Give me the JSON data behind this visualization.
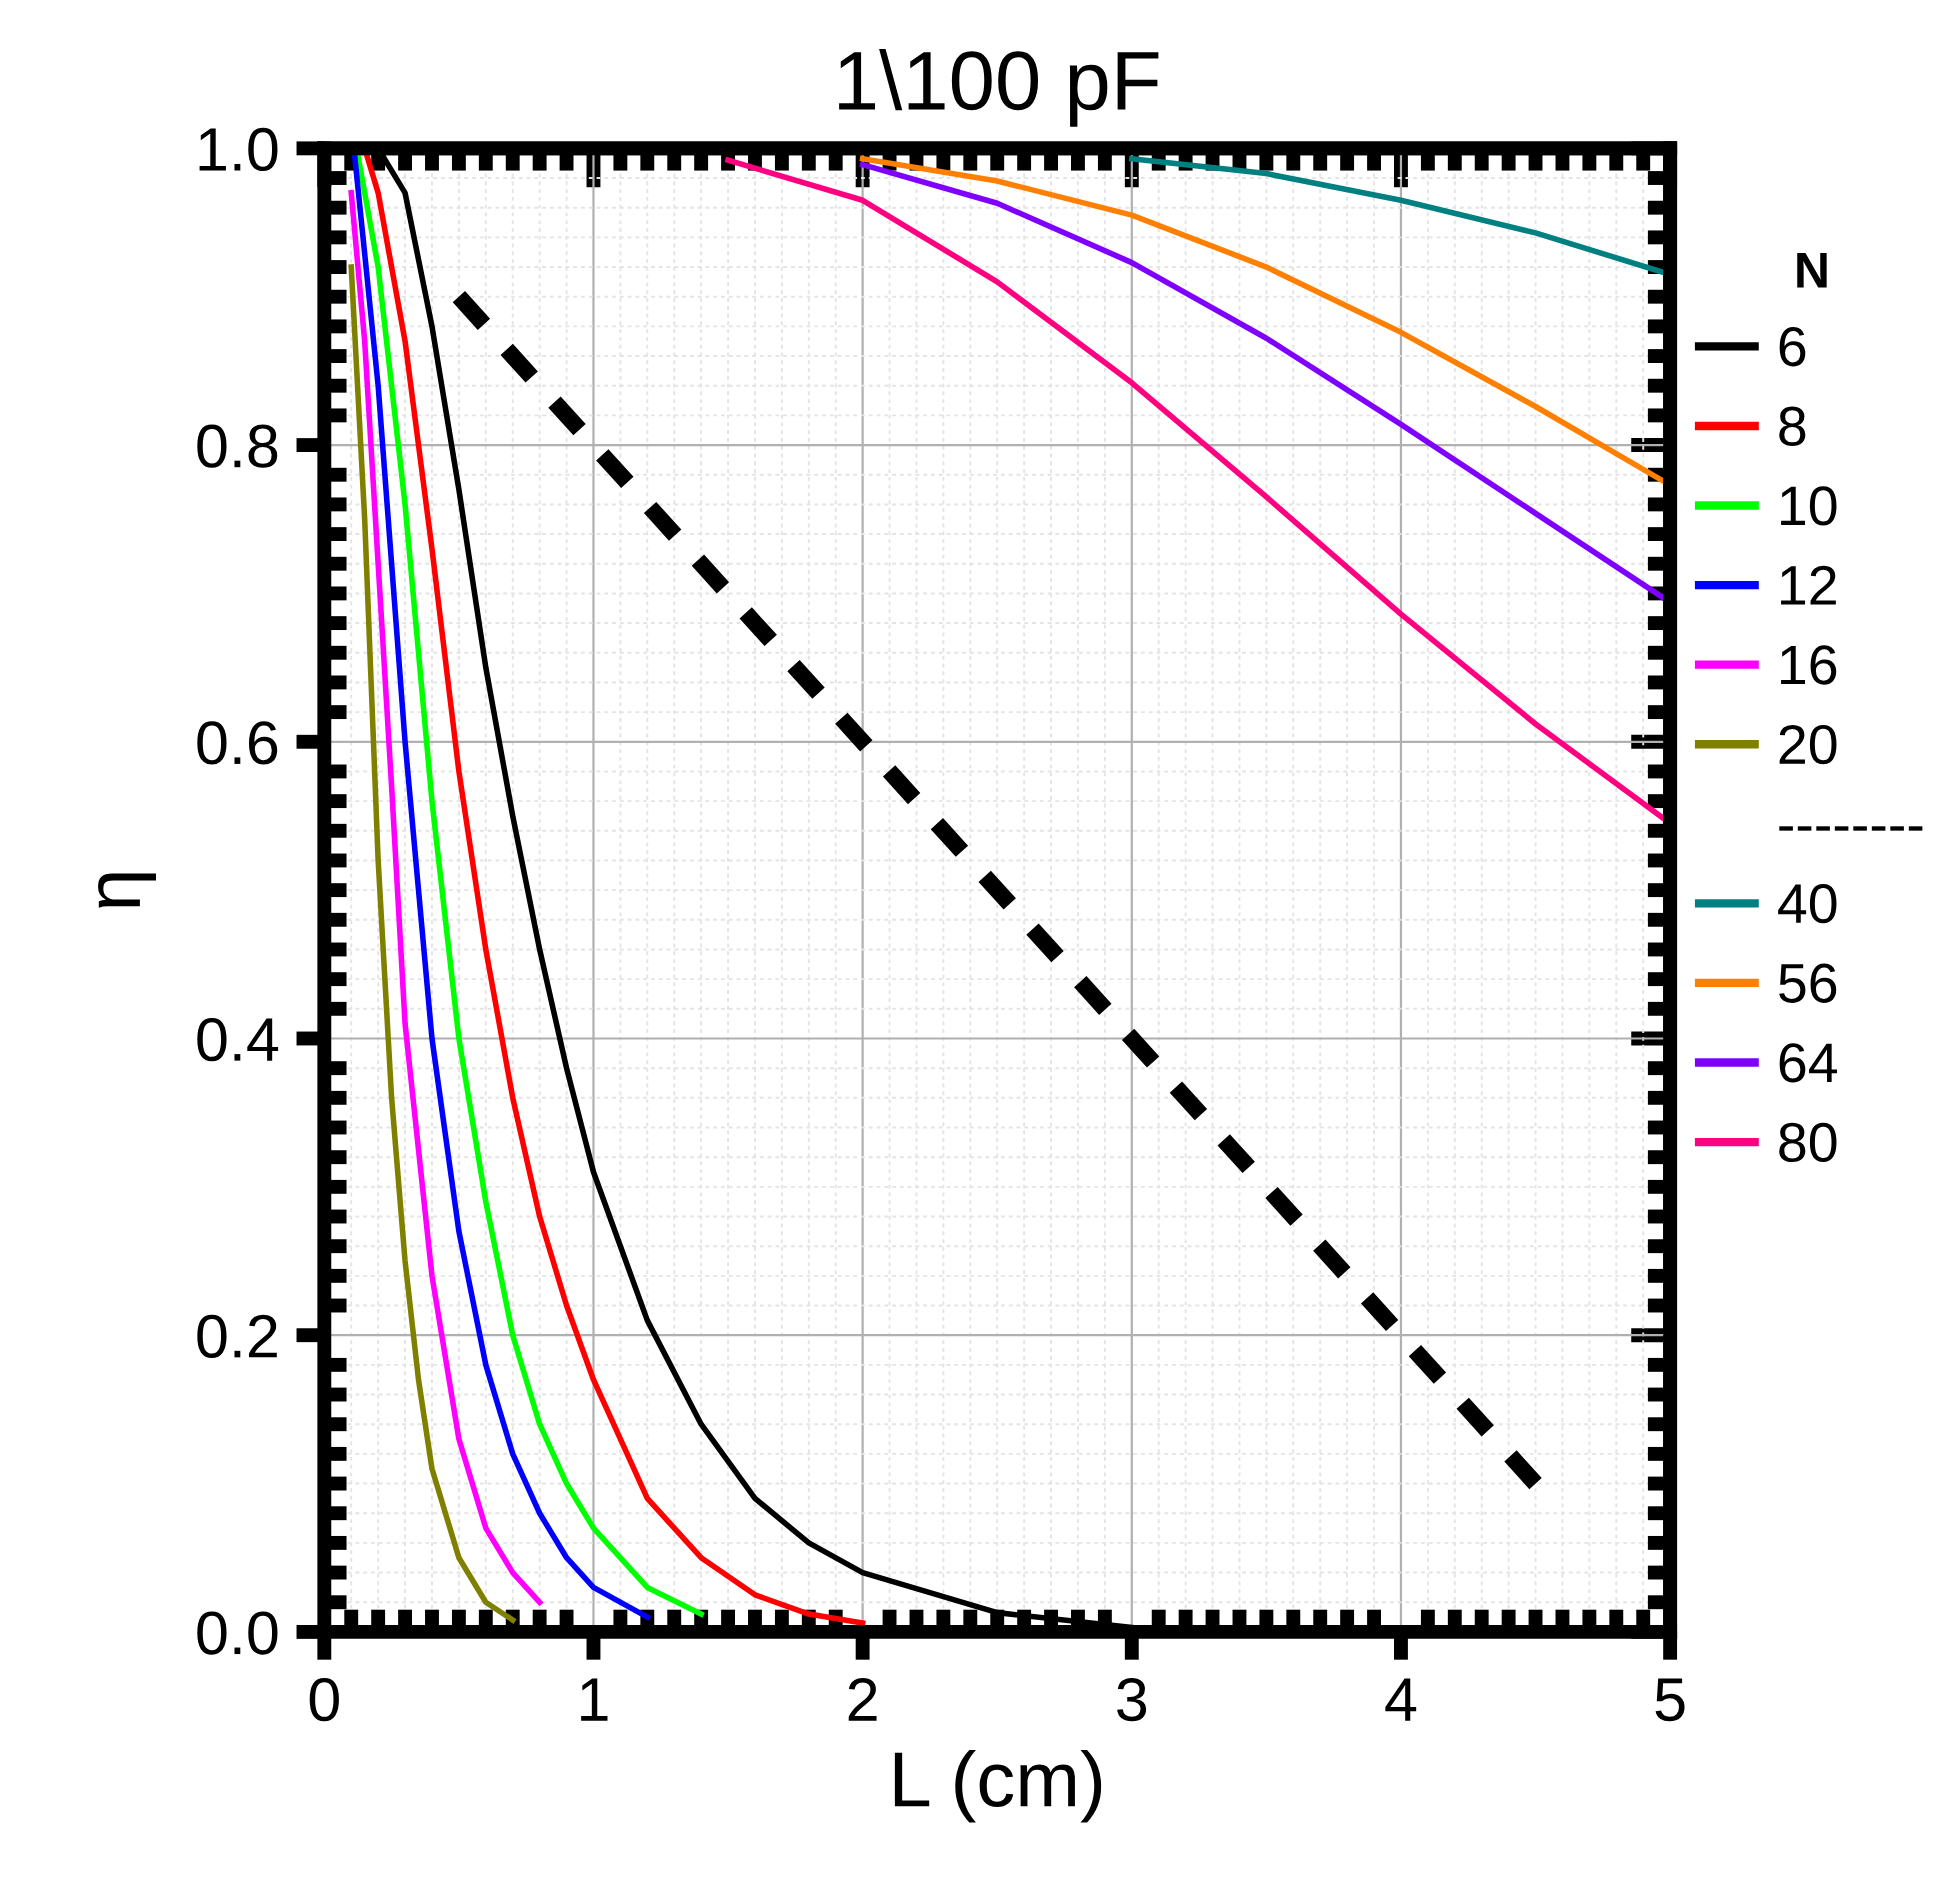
{
  "chart_data": {
    "type": "line",
    "title": "1\\100 pF",
    "xlabel": "L (cm)",
    "ylabel": "η",
    "legend_title": "N",
    "legend": "right",
    "grid": true,
    "xlim": [
      0,
      5
    ],
    "xticks": [
      0,
      1,
      2,
      3,
      4,
      5
    ],
    "ylim": [
      0,
      1.0
    ],
    "yticks": [
      {
        "value": 0,
        "label": "0.0"
      },
      {
        "value": 0.2,
        "label": "0.2"
      },
      {
        "value": 0.4,
        "label": "0.4"
      },
      {
        "value": 0.6,
        "label": "0.6"
      },
      {
        "value": 0.8,
        "label": "0.8"
      },
      {
        "value": 1.0,
        "label": "1.0"
      }
    ],
    "annotations": [
      "--------"
    ],
    "series": [
      {
        "name": "6",
        "color": "#000000",
        "x": [
          0.2,
          0.3,
          0.4,
          0.5,
          0.6,
          0.7,
          0.8,
          0.9,
          1.0,
          1.2,
          1.4,
          1.6,
          1.8,
          2.0,
          2.5,
          3.0
        ],
        "values": [
          1.0,
          0.97,
          0.88,
          0.77,
          0.65,
          0.55,
          0.46,
          0.38,
          0.31,
          0.21,
          0.14,
          0.09,
          0.06,
          0.04,
          0.013,
          0.003
        ]
      },
      {
        "name": "8",
        "color": "#ff0000",
        "x": [
          0.15,
          0.2,
          0.3,
          0.4,
          0.5,
          0.6,
          0.7,
          0.8,
          0.9,
          1.0,
          1.2,
          1.4,
          1.6,
          1.8,
          2.0
        ],
        "values": [
          1.0,
          0.97,
          0.87,
          0.73,
          0.58,
          0.46,
          0.36,
          0.28,
          0.22,
          0.17,
          0.09,
          0.05,
          0.025,
          0.012,
          0.006
        ]
      },
      {
        "name": "10",
        "color": "#00ff00",
        "x": [
          0.12,
          0.2,
          0.3,
          0.4,
          0.5,
          0.6,
          0.7,
          0.8,
          0.9,
          1.0,
          1.2,
          1.4
        ],
        "values": [
          1.0,
          0.92,
          0.76,
          0.56,
          0.4,
          0.29,
          0.2,
          0.14,
          0.1,
          0.07,
          0.03,
          0.012
        ]
      },
      {
        "name": "12",
        "color": "#0000ff",
        "x": [
          0.11,
          0.2,
          0.3,
          0.4,
          0.5,
          0.6,
          0.7,
          0.8,
          0.9,
          1.0,
          1.2
        ],
        "values": [
          1.0,
          0.84,
          0.6,
          0.4,
          0.27,
          0.18,
          0.12,
          0.08,
          0.05,
          0.03,
          0.01
        ]
      },
      {
        "name": "16",
        "color": "#ff00ff",
        "x": [
          0.1,
          0.15,
          0.2,
          0.25,
          0.3,
          0.4,
          0.5,
          0.6,
          0.7,
          0.8
        ],
        "values": [
          0.97,
          0.87,
          0.72,
          0.57,
          0.41,
          0.24,
          0.13,
          0.07,
          0.04,
          0.02
        ]
      },
      {
        "name": "20",
        "color": "#808000",
        "x": [
          0.1,
          0.15,
          0.2,
          0.25,
          0.3,
          0.35,
          0.4,
          0.5,
          0.6,
          0.7
        ],
        "values": [
          0.92,
          0.75,
          0.52,
          0.36,
          0.25,
          0.17,
          0.11,
          0.05,
          0.02,
          0.008
        ]
      },
      {
        "name": "40",
        "color": "#008080",
        "x": [
          3.0,
          3.5,
          4.0,
          4.5,
          5.0
        ],
        "values": [
          0.993,
          0.983,
          0.965,
          0.943,
          0.915
        ]
      },
      {
        "name": "56",
        "color": "#ff8000",
        "x": [
          2.0,
          2.5,
          3.0,
          3.5,
          4.0,
          4.5,
          5.0
        ],
        "values": [
          0.993,
          0.978,
          0.955,
          0.92,
          0.876,
          0.826,
          0.773
        ]
      },
      {
        "name": "64",
        "color": "#8000ff",
        "x": [
          2.0,
          2.5,
          3.0,
          3.5,
          4.0,
          4.5,
          5.0
        ],
        "values": [
          0.989,
          0.963,
          0.923,
          0.872,
          0.814,
          0.754,
          0.694
        ]
      },
      {
        "name": "80",
        "color": "#ff0080",
        "x": [
          1.5,
          2.0,
          2.5,
          3.0,
          3.5,
          4.0,
          4.5,
          5.0
        ],
        "values": [
          0.992,
          0.965,
          0.91,
          0.842,
          0.765,
          0.686,
          0.612,
          0.545
        ]
      },
      {
        "color": "#000000",
        "line_style": "dashed",
        "x": [
          0.5,
          4.5
        ],
        "values": [
          0.9,
          0.1
        ]
      }
    ]
  }
}
